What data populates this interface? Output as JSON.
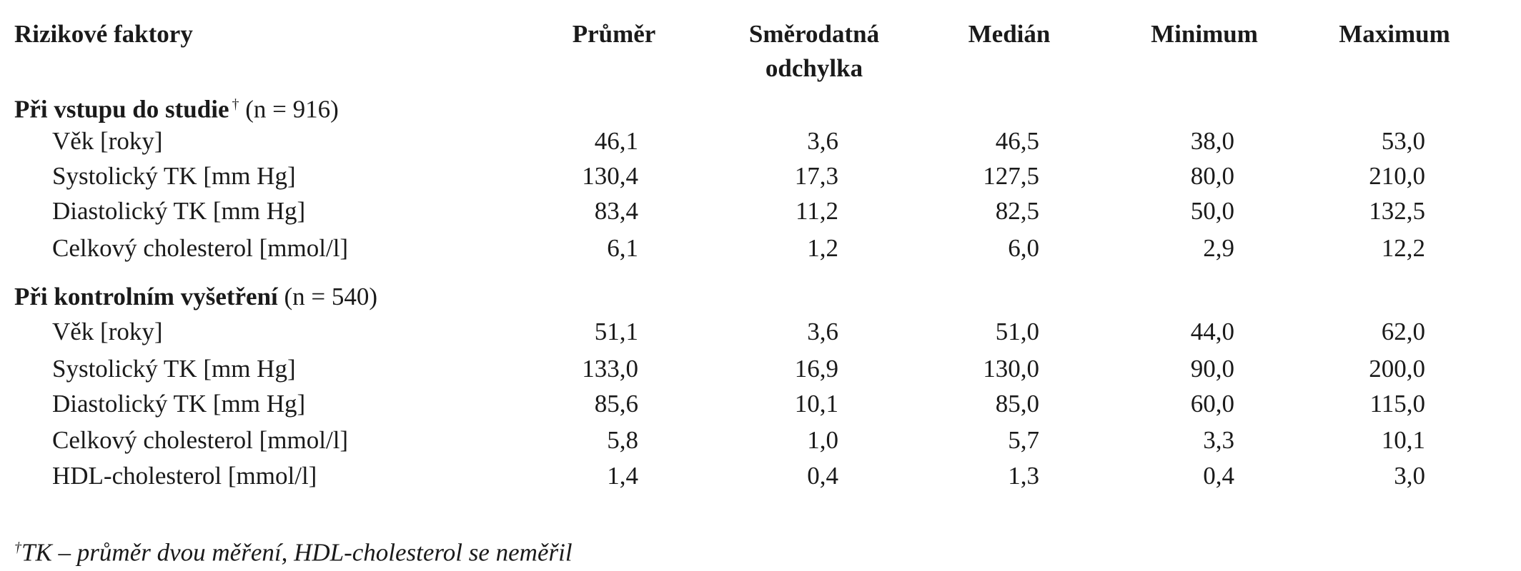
{
  "header": {
    "columns": [
      "Rizikové faktory",
      "Průměr",
      "Směrodatná odchylka",
      "Medián",
      "Minimum",
      "Maximum"
    ]
  },
  "sections": [
    {
      "title": "Při vstupu do studie",
      "mark": "†",
      "note": "(n = 916)",
      "rows": [
        [
          "Věk [roky]",
          "46,1",
          "3,6",
          "46,5",
          "38,0",
          "53,0"
        ],
        [
          "Systolický TK [mm Hg]",
          "130,4",
          "17,3",
          "127,5",
          "80,0",
          "210,0"
        ],
        [
          "Diastolický TK [mm Hg]",
          "83,4",
          "11,2",
          "82,5",
          "50,0",
          "132,5"
        ],
        [
          "Celkový cholesterol [mmol/l]",
          "6,1",
          "1,2",
          "6,0",
          "2,9",
          "12,2"
        ]
      ]
    },
    {
      "title": "Při kontrolním vyšetření",
      "note": "(n = 540)",
      "rows": [
        [
          "Věk [roky]",
          "51,1",
          "3,6",
          "51,0",
          "44,0",
          "62,0"
        ],
        [
          "Systolický TK [mm Hg]",
          "133,0",
          "16,9",
          "130,0",
          "90,0",
          "200,0"
        ],
        [
          "Diastolický TK [mm Hg]",
          "85,6",
          "10,1",
          "85,0",
          "60,0",
          "115,0"
        ],
        [
          "Celkový cholesterol [mmol/l]",
          "5,8",
          "1,0",
          "5,7",
          "3,3",
          "10,1"
        ],
        [
          "HDL-cholesterol [mmol/l]",
          "1,4",
          "0,4",
          "1,3",
          "0,4",
          "3,0"
        ]
      ]
    }
  ],
  "footnote": {
    "mark": "†",
    "text": "TK – průměr dvou měření, HDL-cholesterol se neměřil"
  }
}
